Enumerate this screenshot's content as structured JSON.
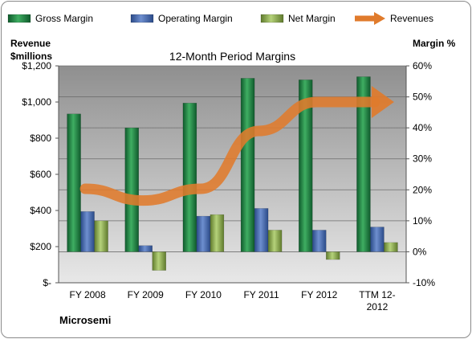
{
  "chart_data": {
    "type": "bar",
    "title": "12-Month Period Margins",
    "company": "Microsemi",
    "categories": [
      "FY 2008",
      "FY 2009",
      "FY 2010",
      "FY 2011",
      "FY 2012",
      "TTM 12-2012"
    ],
    "series": [
      {
        "name": "Gross Margin",
        "axis": "right",
        "color": "#2e8b4a",
        "values": [
          44.5,
          40,
          48,
          56,
          55.5,
          56.5
        ]
      },
      {
        "name": "Operating Margin",
        "axis": "right",
        "color": "#4f6fb0",
        "values": [
          13,
          2,
          11.5,
          14,
          7,
          8
        ]
      },
      {
        "name": "Net Margin",
        "axis": "right",
        "color": "#9bbb59",
        "values": [
          10,
          -6,
          12,
          7,
          -2.5,
          3
        ]
      },
      {
        "name": "Revenues",
        "axis": "left",
        "color": "#e07b2c",
        "type": "line",
        "values": [
          520,
          455,
          520,
          840,
          1000,
          1000
        ]
      }
    ],
    "y_left": {
      "label_line1": "Revenue",
      "label_line2": "$millions",
      "ylim": [
        0,
        1200
      ],
      "ticks": [
        {
          "v": 0,
          "label": "$-"
        },
        {
          "v": 200,
          "label": "$200"
        },
        {
          "v": 400,
          "label": "$400"
        },
        {
          "v": 600,
          "label": "$600"
        },
        {
          "v": 800,
          "label": "$800"
        },
        {
          "v": 1000,
          "label": "$1,000"
        },
        {
          "v": 1200,
          "label": "$1,200"
        }
      ]
    },
    "y_right": {
      "label": "Margin %",
      "ylim": [
        -10,
        60
      ],
      "ticks": [
        {
          "v": -10,
          "label": "-10%"
        },
        {
          "v": 0,
          "label": "0%"
        },
        {
          "v": 10,
          "label": "10%"
        },
        {
          "v": 20,
          "label": "20%"
        },
        {
          "v": 30,
          "label": "30%"
        },
        {
          "v": 40,
          "label": "40%"
        },
        {
          "v": 50,
          "label": "50%"
        },
        {
          "v": 60,
          "label": "60%"
        }
      ]
    },
    "grid": true,
    "legend": "top"
  }
}
